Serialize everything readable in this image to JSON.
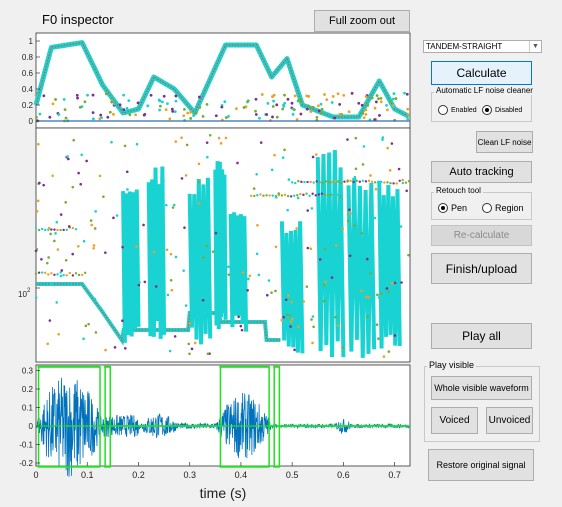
{
  "window": {
    "title": "F0 inspector"
  },
  "toolbar": {
    "full_zoom_out": "Full zoom out"
  },
  "method_select": {
    "value": "TANDEM-STRAIGHT"
  },
  "buttons": {
    "calculate": "Calculate",
    "clean_lf_noise": "Clean LF noise",
    "auto_tracking": "Auto tracking",
    "recalculate": "Re-calculate",
    "finish_upload": "Finish/upload",
    "play_all": "Play all",
    "whole_visible_waveform": "Whole visible waveform",
    "voiced": "Voiced",
    "unvoiced": "Unvoiced",
    "restore_original": "Restore original signal"
  },
  "lf_noise_group": {
    "title": "Automatic LF noise cleaner",
    "enabled": "Enabled",
    "disabled": "Disabled",
    "selected": "Disabled"
  },
  "retouch_group": {
    "title": "Retouch tool",
    "pen": "Pen",
    "region": "Region",
    "selected": "Pen"
  },
  "play_visible_group": {
    "title": "Play visible"
  },
  "plot_top": {
    "yticks": [
      "1",
      "0.8",
      "0.6",
      "0.4",
      "0.2",
      "0"
    ]
  },
  "plot_middle": {
    "ytick": "10",
    "ytick_exp": "2"
  },
  "plot_bottom": {
    "yticks": [
      "0.3",
      "0.2",
      "0.1",
      "0",
      "-0.1",
      "-0.2"
    ],
    "xticks": [
      "0",
      "0.1",
      "0.2",
      "0.3",
      "0.4",
      "0.5",
      "0.6",
      "0.7"
    ],
    "xlabel": "time (s)"
  },
  "colors": {
    "accent": "#0078d7",
    "f0_track": "#19d3d3",
    "f0_core": "#d9542b",
    "waveform": "#0072bd",
    "voicing": "#22e022",
    "candidate_orange": "#f0a020",
    "candidate_purple": "#7e2f8e",
    "candidate_green": "#77ac30"
  }
}
